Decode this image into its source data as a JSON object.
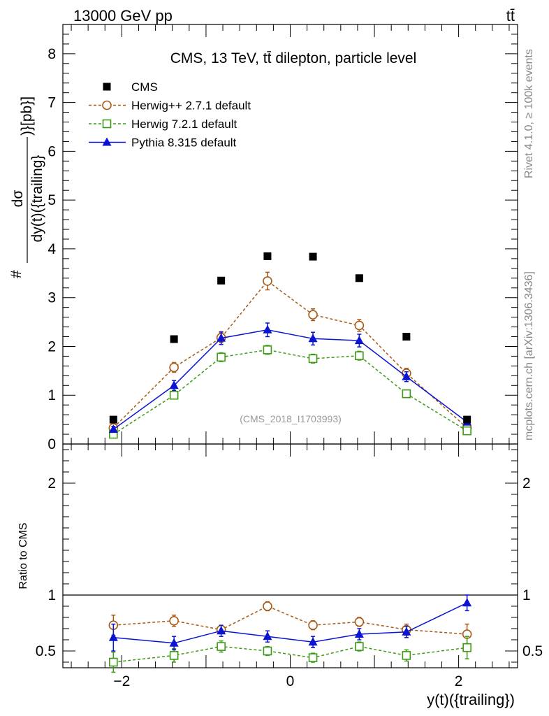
{
  "header": {
    "left": "13000 GeV pp",
    "right": "tt̄"
  },
  "side": {
    "rivet": "Rivet 4.1.0, ≥ 100k events",
    "mcplots": "mcplots.cern.ch [arXiv:1306.3436]"
  },
  "chart_data": {
    "type": "scatter",
    "title": "CMS, 13 TeV, tt̄ dilepton, particle level",
    "analysis_tag": "(CMS_2018_I1703993)",
    "xlabel": "y(t)({trailing})",
    "ylabel_top": {
      "prefix": "#",
      "numerator": "dσ",
      "denominator": "dy(t)({trailing}",
      "suffix": ")}[pb}]"
    },
    "ylabel_ratio": "Ratio to CMS",
    "xlim": [
      -2.7,
      2.7
    ],
    "ylim_main": [
      0,
      8.6
    ],
    "ylim_ratio": [
      0.35,
      2.35
    ],
    "x_ticks": [
      -2,
      0,
      2
    ],
    "x_tick_labels": [
      "−2",
      "0",
      "2"
    ],
    "y_ticks_main": [
      0,
      1,
      2,
      3,
      4,
      5,
      6,
      7,
      8
    ],
    "y_tick_labels_main": [
      "0",
      "1",
      "2",
      "3",
      "4",
      "5",
      "6",
      "7",
      "8"
    ],
    "y_ticks_ratio": [
      0.5,
      1,
      2
    ],
    "y_tick_labels_ratio": [
      "0.5",
      "1",
      "2"
    ],
    "x": [
      -2.1,
      -1.38,
      -0.82,
      -0.27,
      0.27,
      0.82,
      1.38,
      2.1
    ],
    "series": [
      {
        "name": "CMS",
        "color": "#000000",
        "marker": "filled-square",
        "line": "none",
        "values": [
          0.5,
          2.15,
          3.35,
          3.85,
          3.84,
          3.4,
          2.2,
          0.5
        ],
        "errors": [
          0,
          0,
          0,
          0,
          0,
          0,
          0,
          0
        ],
        "ratio": null,
        "ratio_err": null
      },
      {
        "name": "Herwig++ 2.7.1 default",
        "color": "#a85a14",
        "marker": "open-circle",
        "line": "dashed",
        "values": [
          0.33,
          1.57,
          2.18,
          3.34,
          2.65,
          2.43,
          1.45,
          0.33
        ],
        "errors": [
          0.05,
          0.1,
          0.1,
          0.18,
          0.12,
          0.12,
          0.1,
          0.05
        ],
        "ratio": [
          0.73,
          0.77,
          0.69,
          0.9,
          0.73,
          0.76,
          0.69,
          0.65
        ],
        "ratio_err": [
          0.09,
          0.05,
          0.03,
          0.04,
          0.04,
          0.04,
          0.05,
          0.09
        ]
      },
      {
        "name": "Herwig 7.2.1 default",
        "color": "#3d9a14",
        "marker": "open-square",
        "line": "dashed",
        "values": [
          0.2,
          1.0,
          1.78,
          1.93,
          1.75,
          1.81,
          1.03,
          0.27
        ],
        "errors": [
          0.04,
          0.07,
          0.09,
          0.09,
          0.09,
          0.09,
          0.07,
          0.04
        ],
        "ratio": [
          0.4,
          0.46,
          0.54,
          0.5,
          0.44,
          0.54,
          0.46,
          0.53
        ],
        "ratio_err": [
          0.09,
          0.06,
          0.05,
          0.04,
          0.04,
          0.04,
          0.05,
          0.1
        ]
      },
      {
        "name": "Pythia 8.315 default",
        "color": "#0a14d2",
        "marker": "filled-triangle",
        "line": "solid",
        "values": [
          0.3,
          1.2,
          2.17,
          2.34,
          2.16,
          2.12,
          1.38,
          0.45
        ],
        "errors": [
          0.06,
          0.1,
          0.13,
          0.14,
          0.13,
          0.13,
          0.1,
          0.06
        ],
        "ratio": [
          0.62,
          0.57,
          0.68,
          0.63,
          0.58,
          0.65,
          0.67,
          0.93
        ],
        "ratio_err": [
          0.12,
          0.06,
          0.05,
          0.05,
          0.05,
          0.05,
          0.05,
          0.07
        ]
      }
    ]
  }
}
